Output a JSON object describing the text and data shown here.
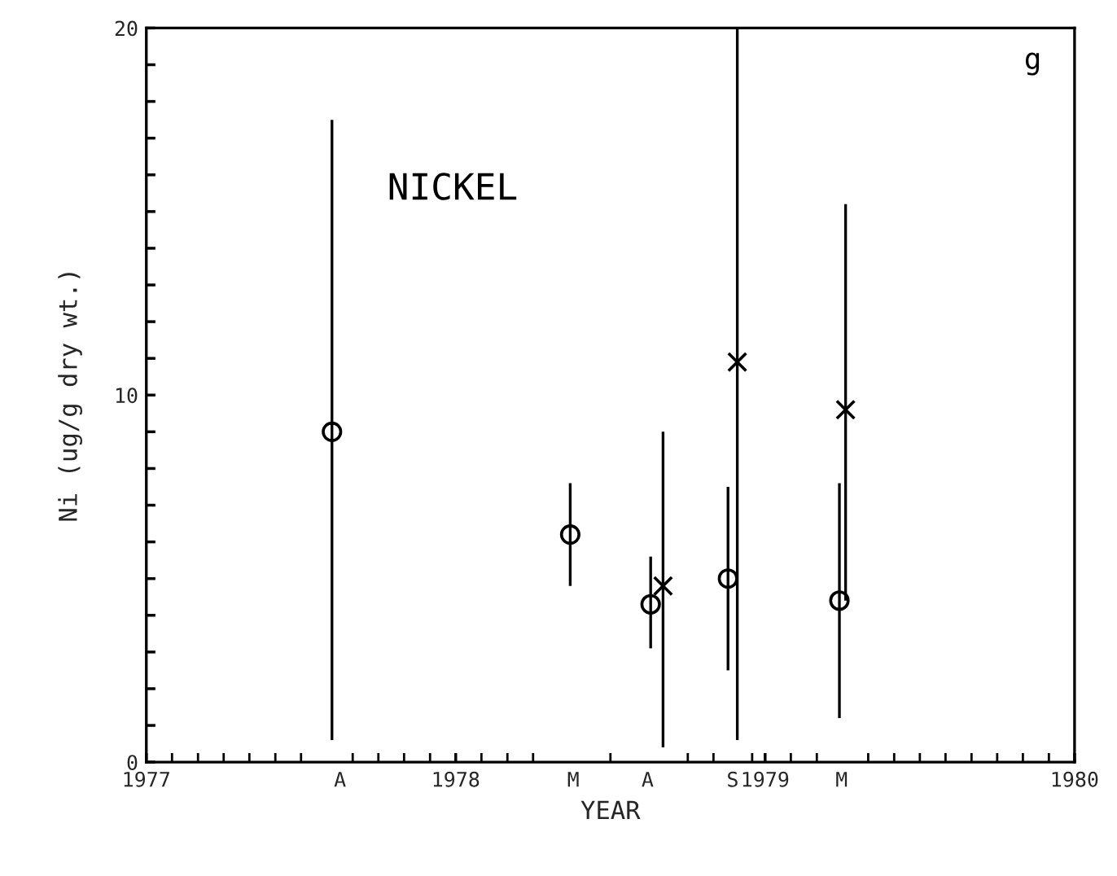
{
  "chart_data": {
    "type": "scatter",
    "xlabel": "YEAR",
    "ylabel": "Ni (ug/g dry wt.)",
    "annotations": [
      "NICKEL",
      "g"
    ],
    "xlim": [
      1977,
      1980
    ],
    "ylim": [
      0,
      20
    ],
    "xticks": [
      1977,
      1978,
      1979,
      1980,
      {
        "value": 1977.626,
        "label": "A"
      },
      {
        "value": 1978.38,
        "label": "M"
      },
      {
        "value": 1978.62,
        "label": "A"
      },
      {
        "value": 1978.895,
        "label": "S"
      },
      {
        "value": 1979.247,
        "label": "M"
      },
      {
        "value": 1977.083,
        "label": null
      },
      {
        "value": 1977.167,
        "label": null
      },
      {
        "value": 1977.25,
        "label": null
      },
      {
        "value": 1977.333,
        "label": null
      },
      {
        "value": 1977.417,
        "label": null
      },
      {
        "value": 1977.5,
        "label": null
      },
      {
        "value": 1977.667,
        "label": null
      },
      {
        "value": 1977.75,
        "label": null
      },
      {
        "value": 1977.833,
        "label": null
      },
      {
        "value": 1977.917,
        "label": null
      },
      {
        "value": 1978.083,
        "label": null
      },
      {
        "value": 1978.167,
        "label": null
      },
      {
        "value": 1978.25,
        "label": null
      },
      {
        "value": 1978.5,
        "label": null
      },
      {
        "value": 1978.75,
        "label": null
      },
      {
        "value": 1978.833,
        "label": null
      },
      {
        "value": 1978.958,
        "label": null
      },
      {
        "value": 1979.083,
        "label": null
      },
      {
        "value": 1979.167,
        "label": null
      },
      {
        "value": 1979.333,
        "label": null
      },
      {
        "value": 1979.417,
        "label": null
      },
      {
        "value": 1979.5,
        "label": null
      },
      {
        "value": 1979.583,
        "label": null
      },
      {
        "value": 1979.667,
        "label": null
      },
      {
        "value": 1979.75,
        "label": null
      },
      {
        "value": 1979.833,
        "label": null
      },
      {
        "value": 1979.917,
        "label": null
      }
    ],
    "yticks": [
      0,
      {
        "value": 1,
        "label": null
      },
      {
        "value": 2,
        "label": null
      },
      {
        "value": 3,
        "label": null
      },
      {
        "value": 4,
        "label": null
      },
      {
        "value": 5,
        "label": null
      },
      {
        "value": 6,
        "label": null
      },
      {
        "value": 7,
        "label": null
      },
      {
        "value": 8,
        "label": null
      },
      {
        "value": 9,
        "label": null
      },
      10,
      {
        "value": 11,
        "label": null
      },
      {
        "value": 12,
        "label": null
      },
      {
        "value": 13,
        "label": null
      },
      {
        "value": 14,
        "label": null
      },
      {
        "value": 15,
        "label": null
      },
      {
        "value": 16,
        "label": null
      },
      {
        "value": 17,
        "label": null
      },
      {
        "value": 18,
        "label": null
      },
      {
        "value": 19,
        "label": null
      },
      20
    ],
    "grid": false,
    "legend": false,
    "series": [
      {
        "color": "#000000",
        "marker": "circle",
        "x": [
          1977.6,
          1978.37,
          1978.63,
          1978.88,
          1979.24
        ],
        "values": [
          9.0,
          6.2,
          4.3,
          5.0,
          4.4
        ],
        "errors": [
          [
            0.6,
            17.5
          ],
          [
            4.8,
            7.6
          ],
          [
            3.1,
            5.6
          ],
          [
            2.5,
            7.5
          ],
          [
            1.2,
            7.6
          ]
        ]
      },
      {
        "color": "#000000",
        "marker": "cross",
        "x": [
          1978.67,
          1978.91,
          1979.26
        ],
        "values": [
          4.8,
          10.9,
          9.6
        ],
        "errors": [
          [
            0.4,
            9.0
          ],
          [
            0.6,
            20.0
          ],
          [
            4.4,
            15.2
          ]
        ]
      }
    ]
  }
}
